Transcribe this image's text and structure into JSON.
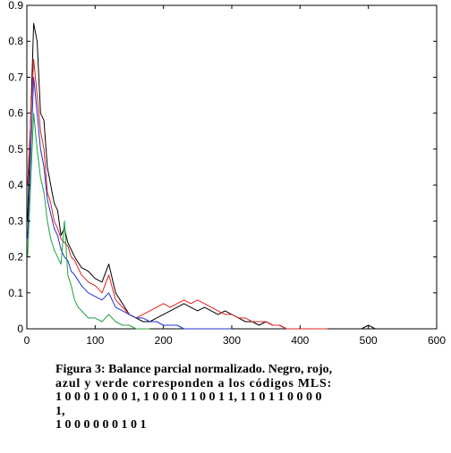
{
  "chart_data": {
    "type": "line",
    "title": "",
    "xlabel": "",
    "ylabel": "",
    "xlim": [
      0,
      600
    ],
    "ylim": [
      0,
      0.9
    ],
    "grid": false,
    "x_ticks": [
      0,
      100,
      200,
      300,
      400,
      500,
      600
    ],
    "y_ticks": [
      0,
      0.1,
      0.2,
      0.3,
      0.4,
      0.5,
      0.6,
      0.7,
      0.8,
      0.9
    ],
    "x_tick_labels": [
      "0",
      "100",
      "200",
      "300",
      "400",
      "500",
      "600"
    ],
    "y_tick_labels": [
      "0",
      "0.1",
      "0.2",
      "0.3",
      "0.4",
      "0.5",
      "0.6",
      "0.7",
      "0.8",
      "0.9"
    ],
    "series": [
      {
        "color": "#000000",
        "x": [
          1,
          10,
          15,
          20,
          25,
          30,
          35,
          40,
          45,
          50,
          55,
          60,
          65,
          70,
          80,
          90,
          100,
          110,
          120,
          130,
          140,
          150,
          160,
          170,
          180,
          190,
          200,
          210,
          220,
          230,
          240,
          250,
          260,
          270,
          280,
          290,
          300,
          310,
          320,
          330,
          340,
          350,
          360,
          370,
          380,
          390,
          400,
          410,
          420,
          430,
          440,
          450,
          460,
          470,
          480,
          490,
          500,
          510
        ],
        "y": [
          0.3,
          0.85,
          0.8,
          0.6,
          0.58,
          0.45,
          0.4,
          0.35,
          0.33,
          0.26,
          0.28,
          0.24,
          0.22,
          0.2,
          0.17,
          0.16,
          0.14,
          0.13,
          0.18,
          0.1,
          0.07,
          0.04,
          0.03,
          0.02,
          0.02,
          0.03,
          0.04,
          0.05,
          0.06,
          0.07,
          0.06,
          0.05,
          0.06,
          0.05,
          0.04,
          0.05,
          0.04,
          0.03,
          0.02,
          0.02,
          0.01,
          0.02,
          0.01,
          0.01,
          0.0,
          0.0,
          0.0,
          0.0,
          0.0,
          0.0,
          0.0,
          0.0,
          0.0,
          0.0,
          0.0,
          0.0,
          0.01,
          0.0
        ]
      },
      {
        "color": "#e02020",
        "x": [
          1,
          10,
          15,
          20,
          25,
          30,
          35,
          40,
          45,
          50,
          55,
          60,
          65,
          70,
          80,
          90,
          100,
          110,
          120,
          130,
          140,
          150,
          160,
          170,
          180,
          190,
          200,
          210,
          220,
          230,
          240,
          250,
          260,
          270,
          280,
          290,
          300,
          310,
          320,
          330,
          340,
          350,
          360,
          370,
          380,
          390,
          400,
          410,
          420,
          430,
          440
        ],
        "y": [
          0.4,
          0.75,
          0.65,
          0.55,
          0.5,
          0.38,
          0.35,
          0.3,
          0.28,
          0.25,
          0.24,
          0.23,
          0.2,
          0.19,
          0.15,
          0.13,
          0.12,
          0.1,
          0.15,
          0.08,
          0.06,
          0.04,
          0.03,
          0.04,
          0.05,
          0.06,
          0.07,
          0.06,
          0.07,
          0.08,
          0.07,
          0.08,
          0.07,
          0.06,
          0.05,
          0.04,
          0.04,
          0.03,
          0.03,
          0.02,
          0.02,
          0.02,
          0.01,
          0.01,
          0.0,
          0.0,
          0.0,
          0.0,
          0.0,
          0.0,
          0.0
        ]
      },
      {
        "color": "#2030d0",
        "x": [
          1,
          10,
          15,
          20,
          25,
          30,
          35,
          40,
          45,
          50,
          55,
          60,
          65,
          70,
          80,
          90,
          100,
          110,
          120,
          130,
          140,
          150,
          160,
          170,
          180,
          190,
          200,
          210,
          220,
          230,
          240,
          250,
          260,
          270,
          280,
          290,
          300
        ],
        "y": [
          0.25,
          0.7,
          0.6,
          0.5,
          0.45,
          0.36,
          0.32,
          0.28,
          0.26,
          0.22,
          0.2,
          0.19,
          0.16,
          0.15,
          0.12,
          0.1,
          0.09,
          0.08,
          0.1,
          0.06,
          0.05,
          0.04,
          0.03,
          0.03,
          0.02,
          0.02,
          0.01,
          0.01,
          0.01,
          0.0,
          0.0,
          0.0,
          0.0,
          0.0,
          0.0,
          0.0,
          0.0
        ]
      },
      {
        "color": "#20a040",
        "x": [
          1,
          10,
          15,
          20,
          25,
          30,
          35,
          40,
          45,
          50,
          55,
          60,
          65,
          70,
          75,
          80,
          90,
          100,
          110,
          120,
          130,
          140,
          150,
          160,
          170,
          180
        ],
        "y": [
          0.2,
          0.6,
          0.5,
          0.42,
          0.38,
          0.3,
          0.25,
          0.22,
          0.2,
          0.18,
          0.3,
          0.15,
          0.12,
          0.08,
          0.06,
          0.05,
          0.03,
          0.03,
          0.02,
          0.04,
          0.02,
          0.01,
          0.01,
          0.0,
          0.0,
          0.0
        ]
      }
    ]
  },
  "caption": {
    "line1": "Figura 3: Balance parcial normalizado. Negro, rojo,",
    "line2": "azul y verde corresponden a los códigos MLS:",
    "line3": "1 0 0 0 1 0 0 0 1, 1 0 0 0 1 1 0 0 1 1, 1 1 0 1 1 0 0 0 0",
    "line4": "1,",
    "line5": "1 0 0 0 0 0 0 1 0 1"
  }
}
